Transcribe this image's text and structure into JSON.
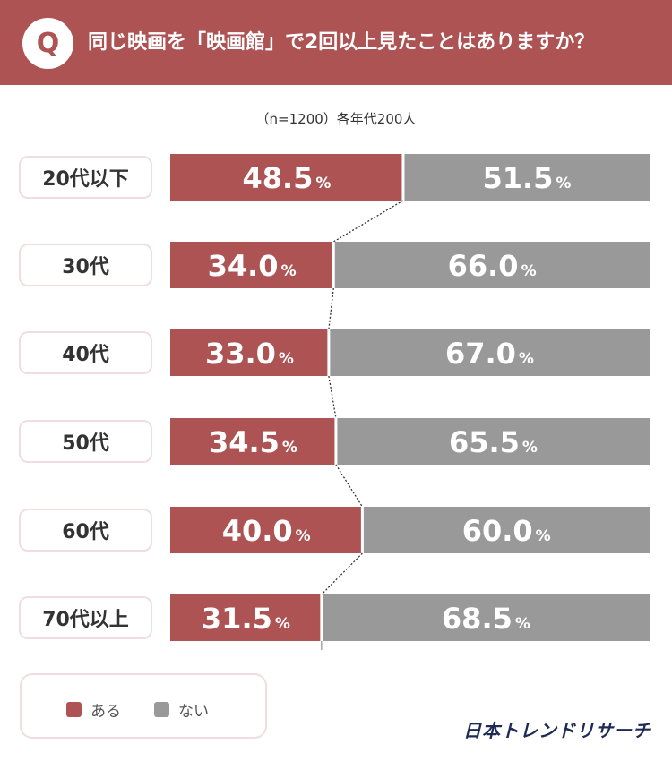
{
  "header": {
    "question_mark": "Q",
    "question": "同じ映画を「映画館」で2回以上見たことはありますか？"
  },
  "note": "（n=1200）各年代200人",
  "legend": {
    "yes_label": "ある",
    "no_label": "ない"
  },
  "brand": "日本トレンドリサーチ",
  "colors": {
    "yes": "#ad5353",
    "no": "#999999",
    "header": "#ad5353"
  },
  "chart_data": {
    "type": "bar",
    "stacked": true,
    "orientation": "horizontal",
    "percent_unit": "%",
    "categories": [
      "20代以下",
      "30代",
      "40代",
      "50代",
      "60代",
      "70代以上"
    ],
    "series": [
      {
        "name": "ある",
        "values": [
          48.5,
          34.0,
          33.0,
          34.5,
          40.0,
          31.5
        ]
      },
      {
        "name": "ない",
        "values": [
          51.5,
          66.0,
          67.0,
          65.5,
          60.0,
          68.5
        ]
      }
    ]
  }
}
